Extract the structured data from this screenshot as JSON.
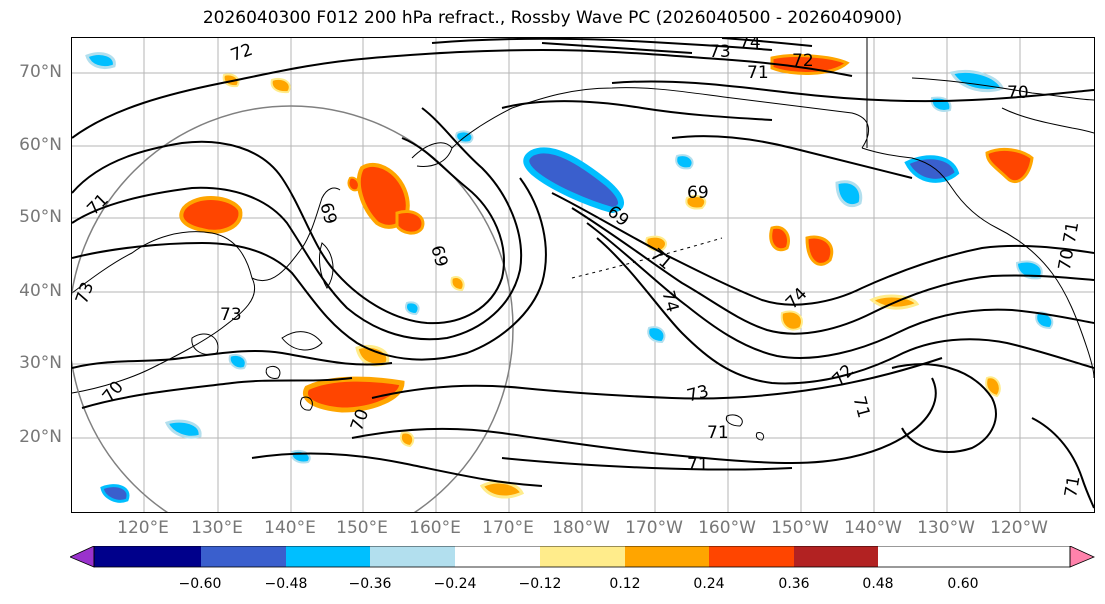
{
  "title": "2026040300 F012 200 hPa refract., Rossby Wave PC (2026040500 - 2026040900)",
  "lat_labels": [
    "70°N",
    "60°N",
    "50°N",
    "40°N",
    "30°N",
    "20°N"
  ],
  "lon_labels": [
    "120°E",
    "130°E",
    "140°E",
    "150°E",
    "160°E",
    "170°E",
    "180°W",
    "170°W",
    "160°W",
    "150°W",
    "140°W",
    "130°W",
    "120°W"
  ],
  "contour_labels": [
    "72",
    "73",
    "74",
    "72",
    "71",
    "70",
    "71",
    "69",
    "69",
    "69",
    "69",
    "71",
    "74",
    "74",
    "73",
    "72",
    "71",
    "71",
    "71",
    "70",
    "73",
    "73",
    "70",
    "71",
    "70",
    "71"
  ],
  "colorbar": {
    "tick_labels": [
      "−0.60",
      "−0.48",
      "−0.36",
      "−0.24",
      "−0.12",
      "0.12",
      "0.24",
      "0.36",
      "0.48",
      "0.60"
    ],
    "colors": [
      "#9a32cd",
      "#00008b",
      "#3a5fcd",
      "#00bfff",
      "#b2dfee",
      "#ffffff",
      "#ffec8b",
      "#ffa500",
      "#ff4500",
      "#b22222",
      "#ff82ab"
    ]
  }
}
